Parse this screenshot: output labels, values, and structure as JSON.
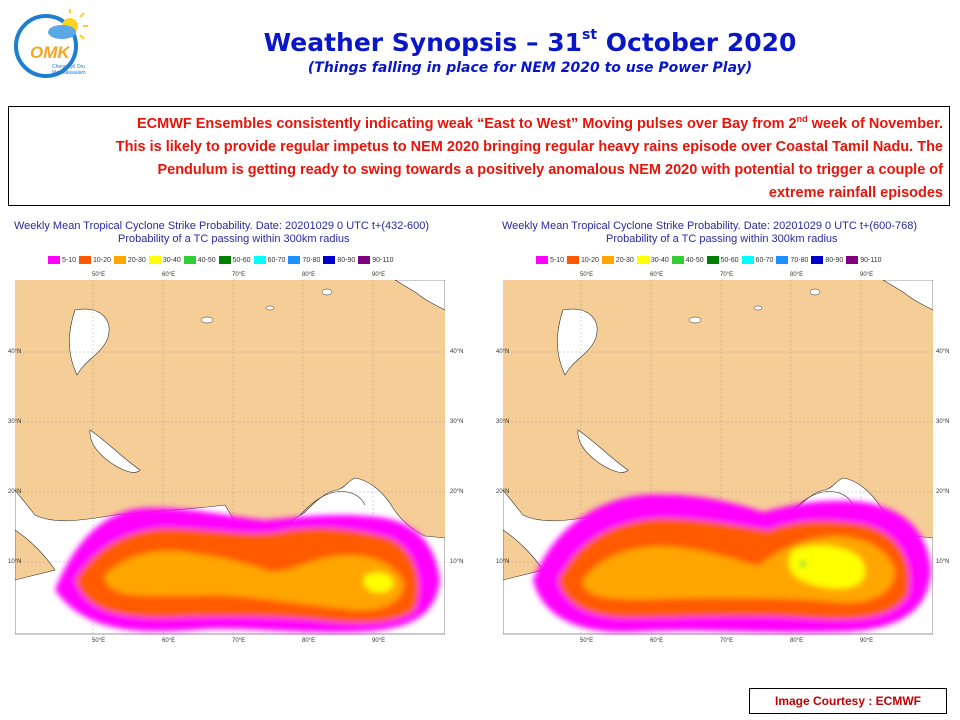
{
  "header": {
    "title_main": "Weather Synopsis – 31",
    "title_sup": "st",
    "title_rest": " October 2020",
    "subtitle": "(Things falling in place for NEM 2020 to use Power Play)"
  },
  "logo": {
    "letters": "OMK",
    "tagline_1": "Chennaiyil Oru",
    "tagline_2": "Mazhakkaalam"
  },
  "highlight": {
    "part1": "ECMWF Ensembles consistently indicating weak “East to West” Moving pulses over Bay from 2",
    "sup": "nd",
    "part2": " week of November.",
    "line2": "This is likely to provide regular impetus to NEM 2020 bringing regular heavy rains episode over Coastal Tamil Nadu. The",
    "line3": "Pendulum is getting ready to swing towards a positively anomalous NEM 2020 with potential to trigger a couple of",
    "line4": "extreme rainfall episodes"
  },
  "panels": {
    "left": {
      "line1": "Weekly Mean Tropical Cyclone Strike Probability. Date: 20201029  0 UTC   t+(432-600)",
      "line2": "Probability of a TC passing within  300km radius"
    },
    "right": {
      "line1": "Weekly Mean Tropical Cyclone Strike Probability. Date: 20201029  0 UTC   t+(600-768)",
      "line2": "Probability of a TC passing within  300km radius"
    }
  },
  "legend": [
    {
      "label": "5-10",
      "color": "#ff00ff"
    },
    {
      "label": "10-20",
      "color": "#ff5a00"
    },
    {
      "label": "20-30",
      "color": "#ffa500"
    },
    {
      "label": "30-40",
      "color": "#ffff00"
    },
    {
      "label": "40-50",
      "color": "#32cd32"
    },
    {
      "label": "50-60",
      "color": "#008000"
    },
    {
      "label": "60-70",
      "color": "#00ffff"
    },
    {
      "label": "70-80",
      "color": "#1e90ff"
    },
    {
      "label": "80-90",
      "color": "#0000cd"
    },
    {
      "label": "90-110",
      "color": "#800080"
    }
  ],
  "lon_labels": [
    "50°E",
    "60°E",
    "70°E",
    "80°E",
    "90°E"
  ],
  "lat_labels": [
    "40°N",
    "30°N",
    "20°N",
    "10°N"
  ],
  "courtesy": "Image Courtesy : ECMWF",
  "colors": {
    "title": "#0a17c9",
    "highlight": "#e8140a",
    "courtesy": "#c00000",
    "land": "#f5cd96",
    "sea": "#ffffff"
  }
}
